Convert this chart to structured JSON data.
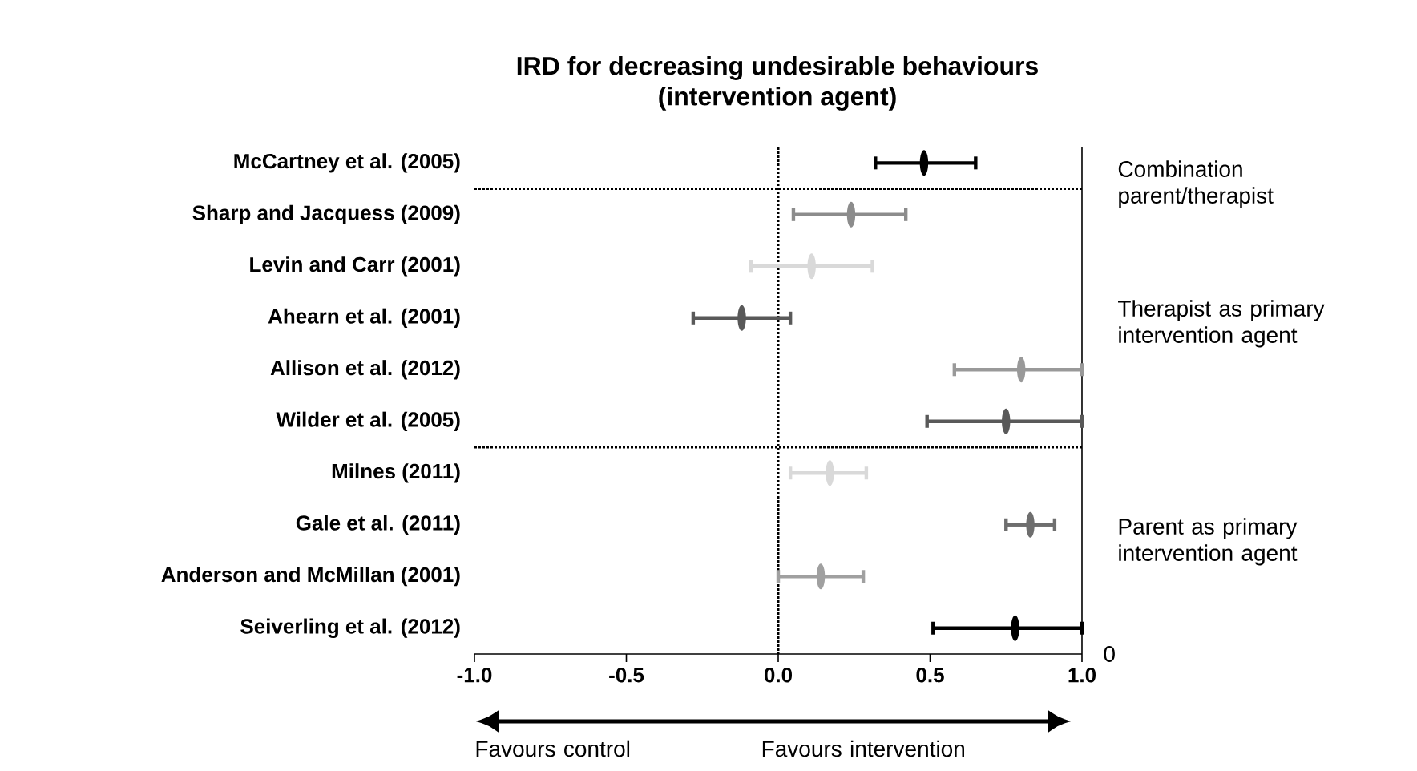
{
  "chart_data": {
    "type": "scatter",
    "orientation": "horizontal",
    "title": "IRD for decreasing undesirable behaviours\n(intervention agent)",
    "categories": [
      "McCartney et al. (2005)",
      "Sharp and Jacquess (2009)",
      "Levin and Carr (2001)",
      "Ahearn et al. (2001)",
      "Allison et al. (2012)",
      "Wilder et al. (2005)",
      "Milnes (2011)",
      "Gale et al. (2011)",
      "Anderson and McMillan (2001)",
      "Seiverling et al. (2012)"
    ],
    "values": [
      0.48,
      0.24,
      0.11,
      -0.12,
      0.8,
      0.75,
      0.17,
      0.83,
      0.14,
      0.78
    ],
    "errors": [
      [
        0.32,
        0.65
      ],
      [
        0.05,
        0.42
      ],
      [
        -0.09,
        0.31
      ],
      [
        -0.28,
        0.04
      ],
      [
        0.58,
        1.0
      ],
      [
        0.49,
        1.0
      ],
      [
        0.04,
        0.29
      ],
      [
        0.75,
        0.91
      ],
      [
        0.0,
        0.28
      ],
      [
        0.51,
        1.0
      ]
    ],
    "colors": [
      "#000000",
      "#8c8c8c",
      "#d9d9d9",
      "#595959",
      "#999999",
      "#595959",
      "#d9d9d9",
      "#6e6e6e",
      "#a0a0a0",
      "#000000"
    ],
    "xlim": [
      -1,
      1
    ],
    "xticks": [
      {
        "value": -1,
        "label": "-1.0"
      },
      {
        "value": -0.5,
        "label": "-0.5"
      },
      {
        "value": 0,
        "label": "0.0"
      },
      {
        "value": 0.5,
        "label": "0.5"
      },
      {
        "value": 1,
        "label": "1.0"
      }
    ],
    "ref_lines": [
      {
        "axis": "x",
        "value": 0,
        "line_style": "dotted"
      }
    ],
    "annotations": [
      "Combination parent/therapist",
      "Therapist as primary intervention agent",
      "Parent as primary intervention agent",
      "0",
      "Favours control",
      "Favours intervention"
    ],
    "grid": false
  }
}
